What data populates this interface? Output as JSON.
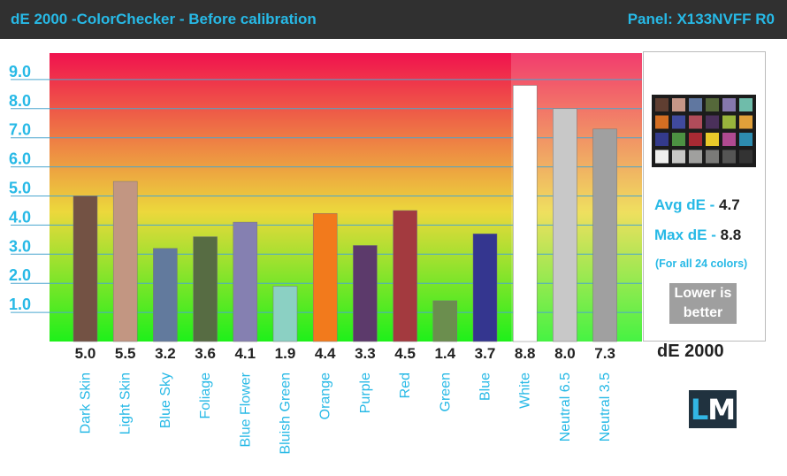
{
  "header": {
    "title": "dE 2000 -ColorChecker  - Before calibration",
    "panel": "Panel: X133NVFF R0"
  },
  "colors": {
    "header_bg": "#303030",
    "accent": "#27b9e6",
    "gradient_top": "#f0124e",
    "gradient_mid": "#ecd83c",
    "gradient_bottom": "#1ef01a",
    "lower_box_bg": "#9f9f9f",
    "logo_bg": "#20323f"
  },
  "stats": {
    "avg_label": "Avg dE - ",
    "avg_value": "4.7",
    "max_label": "Max dE - ",
    "max_value": "8.8",
    "note": "(For all 24 colors)",
    "lower_line1": "Lower is",
    "lower_line2": "better",
    "metric": "dE 2000"
  },
  "logo": {
    "l": "L",
    "m": "M"
  },
  "checker_icon": "colorchecker-swatch-grid",
  "checker_colors": [
    "#5f3e31",
    "#c59687",
    "#6077a0",
    "#55683a",
    "#8678ad",
    "#6fbcaa",
    "#d46e22",
    "#404a9e",
    "#b04c5a",
    "#4a305a",
    "#98b43c",
    "#e0a03a",
    "#333a8c",
    "#4c9142",
    "#a82a33",
    "#e8c92a",
    "#b04a90",
    "#2d8cb0",
    "#f0f0ee",
    "#c8c8c6",
    "#a0a09e",
    "#7a7a78",
    "#555554",
    "#333333"
  ],
  "chart_data": {
    "type": "bar",
    "title": "dE 2000 -ColorChecker  - Before calibration",
    "ylim": [
      0,
      10
    ],
    "yticks": [
      1,
      2,
      3,
      4,
      5,
      6,
      7,
      8,
      9
    ],
    "ytick_labels": [
      "1.0",
      "2.0",
      "3.0",
      "4.0",
      "5.0",
      "6.0",
      "7.0",
      "8.0",
      "9.0"
    ],
    "grid": true,
    "categories": [
      "Dark Skin",
      "Light Skin",
      "Blue Sky",
      "Foliage",
      "Blue Flower",
      "Bluish Green",
      "Orange",
      "Purple",
      "Red",
      "Green",
      "Blue",
      "White",
      "Neutral 6.5",
      "Neutral 3.5"
    ],
    "values": [
      5.0,
      5.5,
      3.2,
      3.6,
      4.1,
      1.9,
      4.4,
      3.3,
      4.5,
      1.4,
      3.7,
      8.8,
      8.0,
      7.3
    ],
    "value_labels": [
      "5.0",
      "5.5",
      "3.2",
      "3.6",
      "4.1",
      "1.9",
      "4.4",
      "3.3",
      "4.5",
      "1.4",
      "3.7",
      "8.8",
      "8.0",
      "7.3"
    ],
    "bar_colors": [
      "#735244",
      "#c29682",
      "#627a9d",
      "#576c43",
      "#8580b1",
      "#8bd0c3",
      "#f27a1c",
      "#5c3a6b",
      "#a33a3f",
      "#6b8e4e",
      "#34368f",
      "#ffffff",
      "#c8c8c8",
      "#a0a0a0"
    ]
  }
}
